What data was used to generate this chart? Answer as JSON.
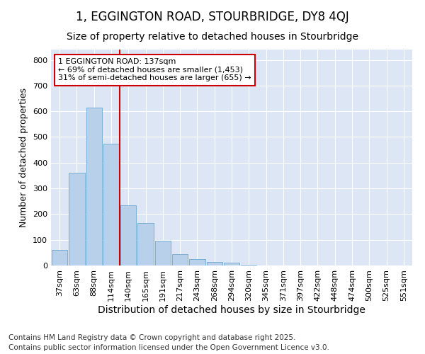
{
  "title": "1, EGGINGTON ROAD, STOURBRIDGE, DY8 4QJ",
  "subtitle": "Size of property relative to detached houses in Stourbridge",
  "xlabel": "Distribution of detached houses by size in Stourbridge",
  "ylabel": "Number of detached properties",
  "categories": [
    "37sqm",
    "63sqm",
    "88sqm",
    "114sqm",
    "140sqm",
    "165sqm",
    "191sqm",
    "217sqm",
    "243sqm",
    "268sqm",
    "294sqm",
    "320sqm",
    "345sqm",
    "371sqm",
    "397sqm",
    "422sqm",
    "448sqm",
    "474sqm",
    "500sqm",
    "525sqm",
    "551sqm"
  ],
  "values": [
    60,
    360,
    615,
    475,
    235,
    165,
    97,
    45,
    25,
    15,
    10,
    2,
    1,
    1,
    1,
    1,
    1,
    1,
    1,
    1,
    1
  ],
  "bar_color": "#b8d0ea",
  "bar_edge_color": "#7aafd4",
  "background_color": "#dce6f5",
  "grid_color": "#ffffff",
  "annotation_line1": "1 EGGINGTON ROAD: 137sqm",
  "annotation_line2": "← 69% of detached houses are smaller (1,453)",
  "annotation_line3": "31% of semi-detached houses are larger (655) →",
  "annotation_box_color": "#cc0000",
  "vline_color": "#cc0000",
  "vline_x_index": 4,
  "ylim": [
    0,
    840
  ],
  "yticks": [
    0,
    100,
    200,
    300,
    400,
    500,
    600,
    700,
    800
  ],
  "footer_line1": "Contains HM Land Registry data © Crown copyright and database right 2025.",
  "footer_line2": "Contains public sector information licensed under the Open Government Licence v3.0.",
  "title_fontsize": 12,
  "subtitle_fontsize": 10,
  "xlabel_fontsize": 10,
  "ylabel_fontsize": 9,
  "tick_fontsize": 8,
  "annotation_fontsize": 8,
  "footer_fontsize": 7.5
}
